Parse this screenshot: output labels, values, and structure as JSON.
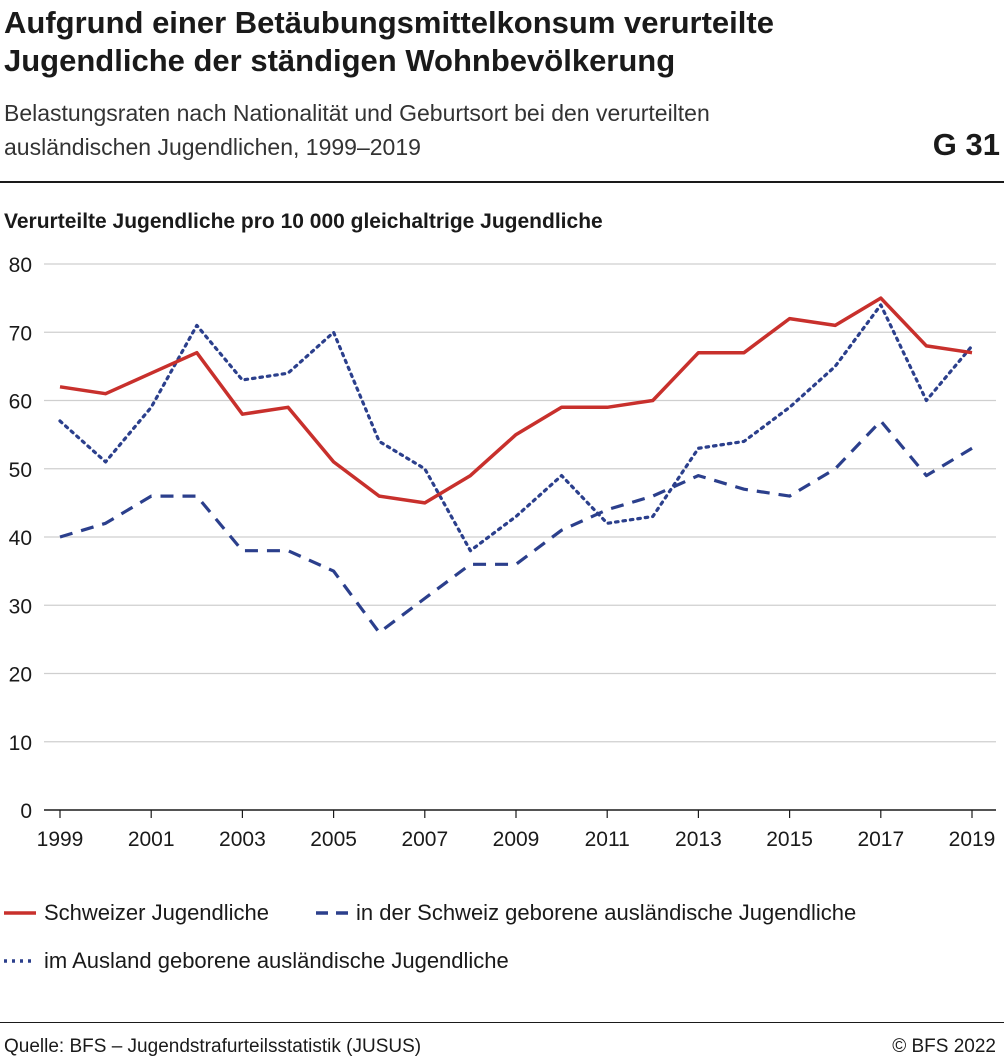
{
  "header": {
    "title": "Aufgrund einer Betäubungsmittelkonsum verurteilte Jugendliche der ständigen Wohnbevölkerung",
    "subtitle": "Belastungsraten nach Nationalität und Geburtsort bei den verurteilten ausländischen Jugendlichen, 1999–2019",
    "code": "G 31"
  },
  "footer": {
    "source": "Quelle: BFS – Jugendstrafurteilsstatistik (JUSUS)",
    "copyright": "© BFS 2022"
  },
  "chart_data": {
    "type": "line",
    "title": "Aufgrund einer Betäubungsmittelkonsum verurteilte Jugendliche der ständigen Wohnbevölkerung",
    "ylabel": "Verurteilte Jugendliche pro 10 000 gleichaltrige Jugendliche",
    "xlabel": "",
    "ylim": [
      0,
      80
    ],
    "yticks": [
      0,
      10,
      20,
      30,
      40,
      50,
      60,
      70,
      80
    ],
    "xticks": [
      1999,
      2001,
      2003,
      2005,
      2007,
      2009,
      2011,
      2013,
      2015,
      2017,
      2019
    ],
    "xlim": [
      1999,
      2019
    ],
    "grid": true,
    "legend_position": "bottom",
    "x": [
      1999,
      2000,
      2001,
      2002,
      2003,
      2004,
      2005,
      2006,
      2007,
      2008,
      2009,
      2010,
      2011,
      2012,
      2013,
      2014,
      2015,
      2016,
      2017,
      2018,
      2019
    ],
    "series": [
      {
        "name": "Schweizer Jugendliche",
        "style": "solid",
        "color": "#c8302c",
        "values": [
          62,
          61,
          64,
          67,
          58,
          59,
          51,
          46,
          45,
          49,
          55,
          59,
          59,
          60,
          67,
          67,
          72,
          71,
          75,
          68,
          67
        ]
      },
      {
        "name": "in der Schweiz geborene ausländische Jugendliche",
        "style": "dashed",
        "color": "#2b3f8c",
        "values": [
          40,
          42,
          46,
          46,
          38,
          38,
          35,
          26,
          31,
          36,
          36,
          41,
          44,
          46,
          49,
          47,
          46,
          50,
          57,
          49,
          53
        ]
      },
      {
        "name": "im Ausland geborene ausländische Jugendliche",
        "style": "dotted",
        "color": "#2b3f8c",
        "values": [
          57,
          51,
          59,
          71,
          63,
          64,
          70,
          54,
          50,
          38,
          43,
          49,
          42,
          43,
          53,
          54,
          59,
          65,
          74,
          60,
          68
        ]
      }
    ]
  }
}
